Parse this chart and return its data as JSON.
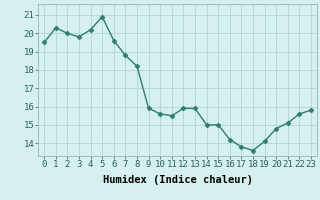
{
  "x": [
    0,
    1,
    2,
    3,
    4,
    5,
    6,
    7,
    8,
    9,
    10,
    11,
    12,
    13,
    14,
    15,
    16,
    17,
    18,
    19,
    20,
    21,
    22,
    23
  ],
  "y": [
    19.5,
    20.3,
    20.0,
    19.8,
    20.2,
    20.9,
    19.6,
    18.8,
    18.2,
    15.9,
    15.6,
    15.5,
    15.9,
    15.9,
    15.0,
    15.0,
    14.2,
    13.8,
    13.6,
    14.1,
    14.8,
    15.1,
    15.6,
    15.8
  ],
  "line_color": "#2e7d6e",
  "marker": "D",
  "markersize": 2.5,
  "linewidth": 1.0,
  "bg_color": "#d6f0f0",
  "grid_color": "#b8d8d8",
  "xlabel": "Humidex (Indice chaleur)",
  "xlabel_fontsize": 7.5,
  "tick_fontsize": 6.5,
  "yticks": [
    14,
    15,
    16,
    17,
    18,
    19,
    20,
    21
  ],
  "xticks": [
    0,
    1,
    2,
    3,
    4,
    5,
    6,
    7,
    8,
    9,
    10,
    11,
    12,
    13,
    14,
    15,
    16,
    17,
    18,
    19,
    20,
    21,
    22,
    23
  ],
  "ylim": [
    13.3,
    21.6
  ],
  "xlim": [
    -0.5,
    23.5
  ]
}
